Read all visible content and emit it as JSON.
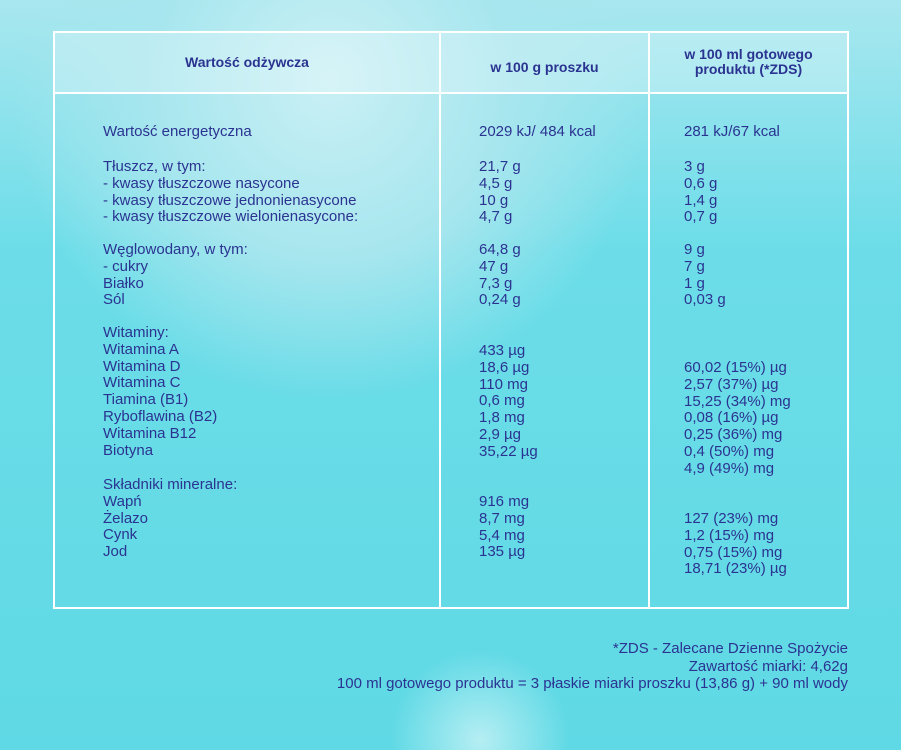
{
  "header": {
    "col1": "Wartość odżywcza",
    "col2": "w 100 g proszku",
    "col3_line1": "w 100 ml gotowego",
    "col3_line2": "produktu (*ZDS)"
  },
  "groups": [
    {
      "labels": [
        "Wartość energetyczna"
      ],
      "per100g": [
        "2029 kJ/ 484 kcal"
      ],
      "per100ml": [
        "281 kJ/67 kcal"
      ]
    },
    {
      "labels": [
        "Tłuszcz, w tym:",
        "- kwasy tłuszczowe nasycone",
        "- kwasy tłuszczowe jednonienasycone",
        "- kwasy tłuszczowe wielonienasycone:"
      ],
      "per100g": [
        "21,7 g",
        "4,5 g",
        "10 g",
        "4,7 g"
      ],
      "per100ml": [
        "3 g",
        "0,6 g",
        "1,4 g",
        "0,7 g"
      ]
    },
    {
      "labels": [
        "Węglowodany, w tym:",
        "- cukry",
        "Białko",
        "Sól"
      ],
      "per100g": [
        "64,8 g",
        "47 g",
        "7,3 g",
        "0,24 g"
      ],
      "per100ml": [
        "9 g",
        "7 g",
        "1 g",
        "0,03 g"
      ]
    },
    {
      "labels": [
        "Witaminy:",
        "Witamina A",
        "Witamina D",
        "Witamina C",
        "Tiamina (B1)",
        "Ryboflawina (B2)",
        "Witamina B12",
        "Biotyna"
      ],
      "per100g": [
        "433 µg",
        "18,6 µg",
        "110 mg",
        "0,6 mg",
        "1,8 mg",
        "2,9 µg",
        "35,22 µg"
      ],
      "per100ml": [
        "60,02 (15%) µg",
        "2,57 (37%) µg",
        "15,25 (34%) mg",
        "0,08 (16%) µg",
        "0,25 (36%) mg",
        "0,4 (50%) mg",
        "4,9 (49%) mg"
      ]
    },
    {
      "labels": [
        "Składniki mineralne:",
        "Wapń",
        "Żelazo",
        "Cynk",
        "Jod"
      ],
      "per100g": [
        "916 mg",
        "8,7 mg",
        "5,4 mg",
        "135 µg"
      ],
      "per100ml": [
        "127 (23%) mg",
        "1,2 (15%) mg",
        "0,75 (15%) mg",
        "18,71 (23%) µg"
      ]
    }
  ],
  "footer": [
    "*ZDS - Zalecane Dzienne Spożycie",
    "Zawartość miarki: 4,62g",
    "100 ml gotowego produktu = 3 płaskie miarki proszku (13,86 g) + 90 ml wody"
  ]
}
